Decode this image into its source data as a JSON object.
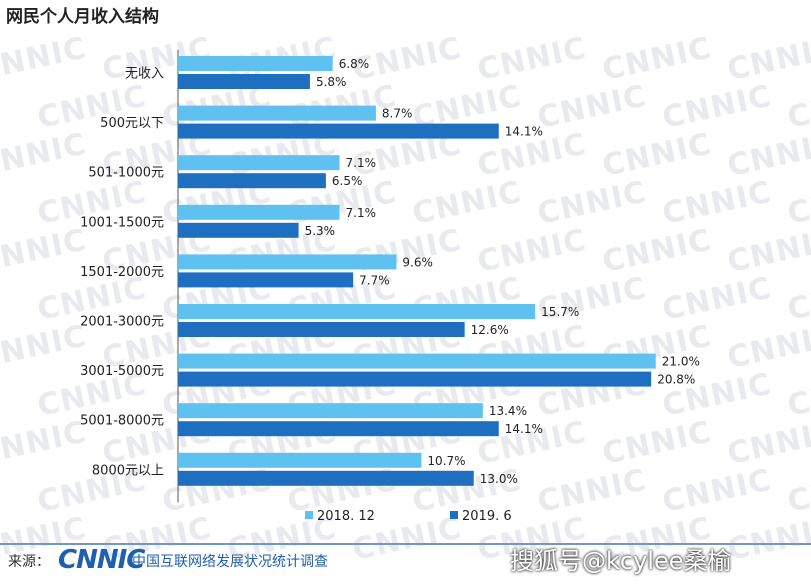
{
  "title": "网民个人月收入结构",
  "chart_data": {
    "type": "bar",
    "orientation": "horizontal",
    "categories": [
      "无收入",
      "500元以下",
      "501-1000元",
      "1001-1500元",
      "1501-2000元",
      "2001-3000元",
      "3001-5000元",
      "5001-8000元",
      "8000元以上"
    ],
    "series": [
      {
        "name": "2018. 12",
        "values": [
          6.8,
          8.7,
          7.1,
          7.1,
          9.6,
          15.7,
          21.0,
          13.4,
          10.7
        ],
        "labels": [
          "6.8%",
          "8.7%",
          "7.1%",
          "7.1%",
          "9.6%",
          "15.7%",
          "21.0%",
          "13.4%",
          "10.7%"
        ],
        "color": "#5ec1f0"
      },
      {
        "name": "2019. 6",
        "values": [
          5.8,
          14.1,
          6.5,
          5.3,
          7.7,
          12.6,
          20.8,
          14.1,
          13.0
        ],
        "labels": [
          "5.8%",
          "14.1%",
          "6.5%",
          "5.3%",
          "7.7%",
          "12.6%",
          "20.8%",
          "14.1%",
          "13.0%"
        ],
        "color": "#1f6fc1"
      }
    ],
    "xlim": [
      0,
      25
    ],
    "legend_position": "bottom",
    "grid": false
  },
  "watermark_text": "CNNIC",
  "footer": {
    "source_label": "来源：",
    "logo_text": "CNNIC",
    "org_text": "中国互联网络发展状况统计调查",
    "overlay_text": "搜狐号@kcylee桑榆"
  }
}
